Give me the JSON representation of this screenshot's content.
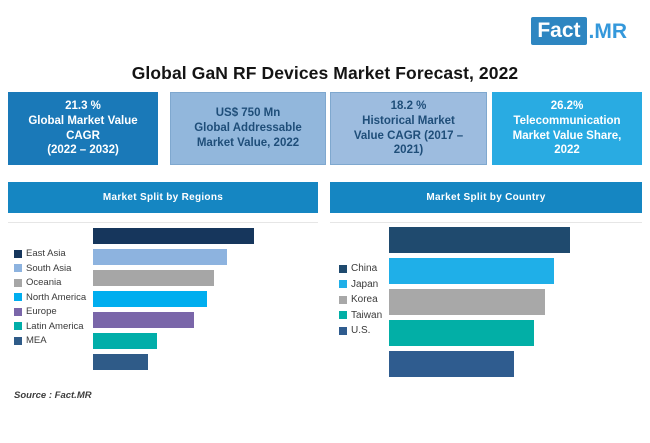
{
  "logo": {
    "fact": "Fact",
    "mr": ".MR"
  },
  "title": "Global GaN RF Devices Market Forecast, 2022",
  "stat_boxes": [
    {
      "lines": [
        "21.3 %",
        "Global Market Value",
        "CAGR",
        "(2022 – 2032)"
      ],
      "bg": "#1A79B8",
      "fg": "#FFFFFF"
    },
    {
      "lines": [
        "US$ 750 Mn",
        "Global Addressable",
        "Market Value, 2022"
      ],
      "bg": "#92B7DC",
      "fg": "#1F4E79"
    },
    {
      "lines": [
        "18.2 %",
        "Historical Market",
        "Value CAGR (2017 –",
        "2021)"
      ],
      "bg": "#9DBCDF",
      "fg": "#1F4E79"
    },
    {
      "lines": [
        "26.2%",
        "Telecommunication",
        "Market Value Share,",
        "2022"
      ],
      "bg": "#29ABE2",
      "fg": "#FFFFFF"
    }
  ],
  "panel_header_color": "#1586C2",
  "chart_data": [
    {
      "type": "bar",
      "orientation": "horizontal",
      "title": "Market Split by Regions",
      "categories": [
        "East Asia",
        "South Asia",
        "Oceania",
        "North America",
        "Europe",
        "Latin America",
        "MEA"
      ],
      "values": [
        100,
        83,
        75,
        71,
        63,
        40,
        34
      ],
      "units": "relative market share index (no numeric axis shown in figure)",
      "colors": [
        "#16365C",
        "#8DB3DF",
        "#A6A6A6",
        "#00AEEF",
        "#7A66A9",
        "#01AEA9",
        "#2F5B88"
      ],
      "legend_position": "left",
      "grid": false,
      "axes_shown": false
    },
    {
      "type": "bar",
      "orientation": "horizontal",
      "title": "Market Split by Country",
      "categories": [
        "China",
        "Japan",
        "Korea",
        "Taiwan",
        "U.S."
      ],
      "values": [
        100,
        91,
        86,
        80,
        69
      ],
      "units": "relative market share index (no numeric axis shown in figure)",
      "colors": [
        "#1F4A6E",
        "#1FAFE8",
        "#A8A8A8",
        "#02AFA6",
        "#2F5C8F"
      ],
      "legend_position": "left",
      "grid": false,
      "axes_shown": false
    }
  ],
  "source": "Source : Fact.MR"
}
